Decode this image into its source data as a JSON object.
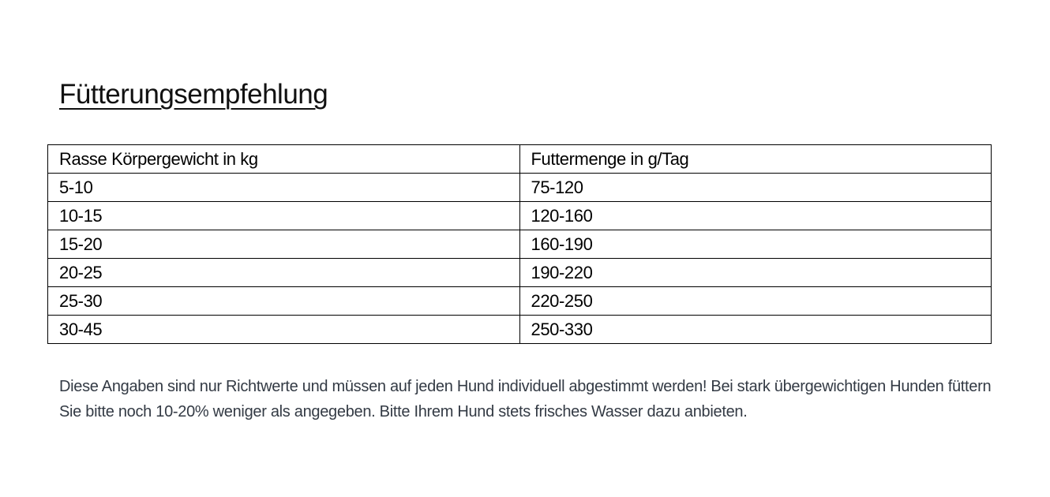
{
  "title": "Fütterungsempfehlung",
  "table": {
    "headers": [
      "Rasse Körpergewicht in kg",
      "Futtermenge in g/Tag"
    ],
    "rows": [
      [
        "5-10",
        "75-120"
      ],
      [
        "10-15",
        "120-160"
      ],
      [
        "15-20",
        "160-190"
      ],
      [
        "20-25",
        "190-220"
      ],
      [
        "25-30",
        "220-250"
      ],
      [
        "30-45",
        "250-330"
      ]
    ]
  },
  "note": "Diese Angaben sind nur Richtwerte und müssen auf jeden Hund individuell abgestimmt werden! Bei stark übergewichtigen Hunden füttern Sie bitte noch 10-20% weniger als angegeben. Bitte Ihrem Hund stets frisches Wasser dazu anbieten."
}
